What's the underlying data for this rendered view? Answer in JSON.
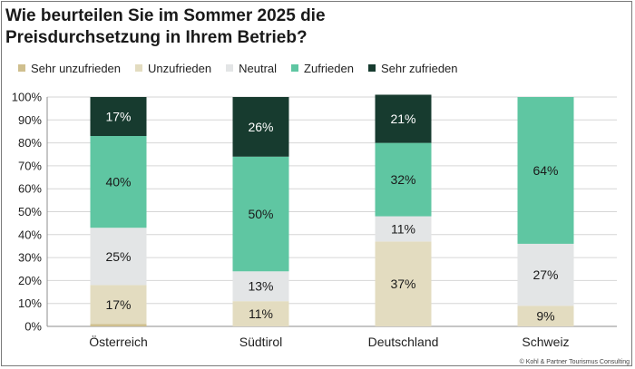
{
  "title_line1": "Wie beurteilen Sie im Sommer 2025 die",
  "title_line2": "Preisdurchsetzung in Ihrem Betrieb?",
  "footer": "© Kohl & Partner Tourismus Consulting",
  "legend": [
    {
      "label": "Sehr unzufrieden",
      "color": "#cfbf8e"
    },
    {
      "label": "Unzufrieden",
      "color": "#e3dcc0"
    },
    {
      "label": "Neutral",
      "color": "#e3e5e6"
    },
    {
      "label": "Zufrieden",
      "color": "#5fc6a2"
    },
    {
      "label": "Sehr zufrieden",
      "color": "#173b2f"
    }
  ],
  "chart_data": {
    "type": "bar",
    "stacked": true,
    "categories": [
      "Österreich",
      "Südtirol",
      "Deutschland",
      "Schweiz"
    ],
    "ylim": [
      0,
      100
    ],
    "yticks": [
      0,
      10,
      20,
      30,
      40,
      50,
      60,
      70,
      80,
      90,
      100
    ],
    "ytick_labels": [
      "0%",
      "10%",
      "20%",
      "30%",
      "40%",
      "50%",
      "60%",
      "70%",
      "80%",
      "90%",
      "100%"
    ],
    "grid": true,
    "series": [
      {
        "name": "Sehr unzufrieden",
        "color": "#cfbf8e",
        "values": [
          1,
          0,
          0,
          0
        ],
        "labels": [
          "",
          "",
          "",
          ""
        ]
      },
      {
        "name": "Unzufrieden",
        "color": "#e3dcc0",
        "values": [
          17,
          11,
          37,
          9
        ],
        "labels": [
          "17%",
          "11%",
          "37%",
          "9%"
        ]
      },
      {
        "name": "Neutral",
        "color": "#e3e5e6",
        "values": [
          25,
          13,
          11,
          27
        ],
        "labels": [
          "25%",
          "13%",
          "11%",
          "27%"
        ]
      },
      {
        "name": "Zufrieden",
        "color": "#5fc6a2",
        "values": [
          40,
          50,
          32,
          64
        ],
        "labels": [
          "40%",
          "50%",
          "32%",
          "64%"
        ]
      },
      {
        "name": "Sehr zufrieden",
        "color": "#173b2f",
        "values": [
          17,
          26,
          21,
          0
        ],
        "labels": [
          "17%",
          "26%",
          "21%",
          ""
        ]
      }
    ]
  }
}
